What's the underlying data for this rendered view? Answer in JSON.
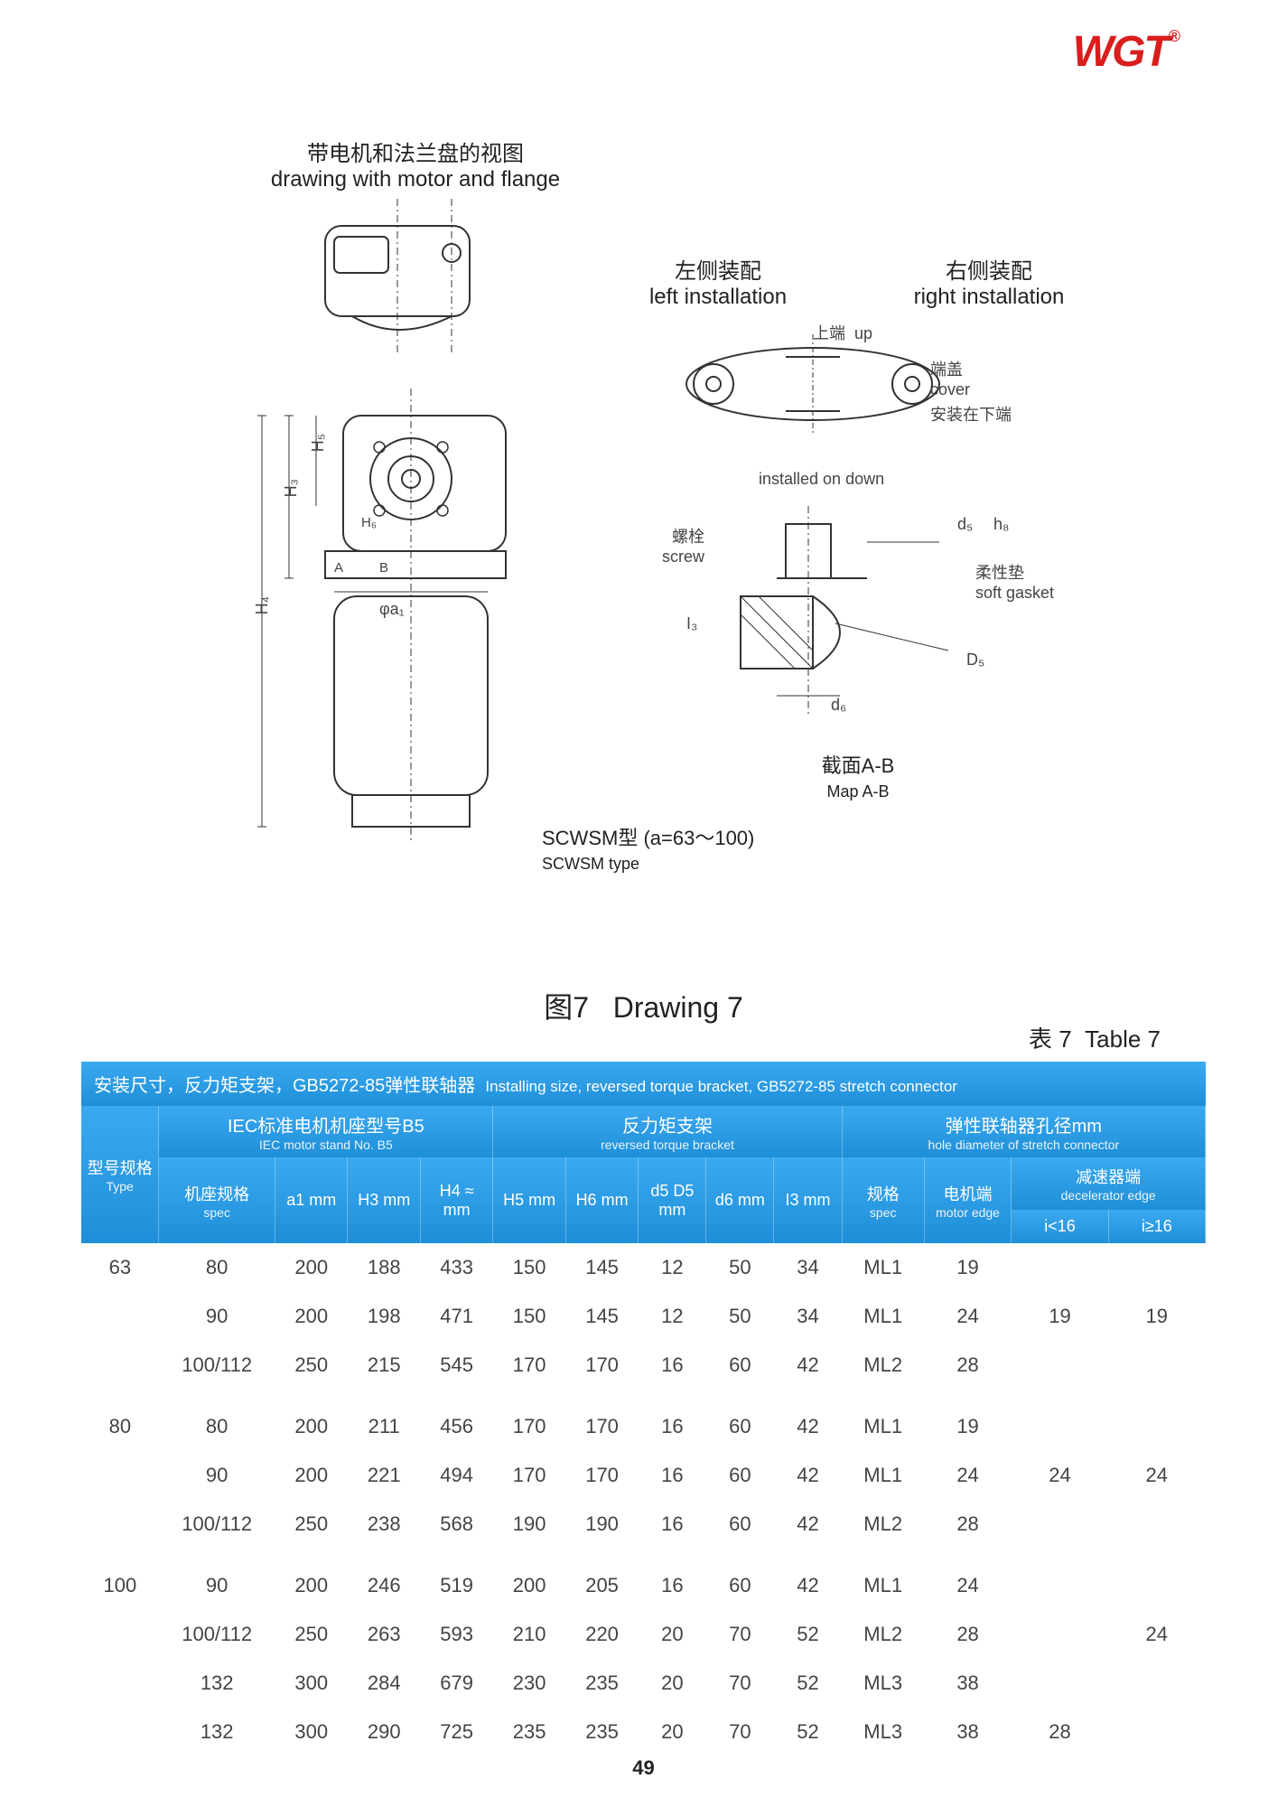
{
  "logo_text": "WGT",
  "diagrams": {
    "top_left": {
      "cn": "带电机和法兰盘的视图",
      "en": "drawing with motor and flange"
    },
    "left_install": {
      "cn": "左侧装配",
      "en": "left installation"
    },
    "right_install": {
      "cn": "右侧装配",
      "en": "right installation"
    },
    "up": {
      "cn": "上端",
      "en": "up"
    },
    "cover": {
      "cn": "端盖",
      "en": "cover"
    },
    "installed_down": {
      "cn": "安装在下端",
      "en": "installed on down"
    },
    "screw": {
      "cn": "螺栓",
      "en": "screw"
    },
    "soft_gasket": {
      "cn": "柔性垫",
      "en": "soft gasket"
    },
    "map_ab": {
      "cn": "截面A-B",
      "en": "Map A-B"
    },
    "scwsm": {
      "cn": "SCWSM型",
      "en": "SCWSM type",
      "param": "(a=63～100)"
    },
    "dim_d5": "d₅",
    "dim_h8": "h₈",
    "dim_D5": "D₅",
    "dim_d6": "d₆",
    "dim_I3": "I₃",
    "dim_H3": "H₃",
    "dim_H4": "H₄",
    "dim_H5": "H₅",
    "dim_H6": "H₆",
    "dim_phi_a1": "φa₁",
    "dim_A": "A",
    "dim_B": "B"
  },
  "drawing_title": {
    "cn": "图7",
    "en": "Drawing 7"
  },
  "table_caption": {
    "cn": "表 7",
    "en": "Table 7"
  },
  "table": {
    "banner": {
      "cn": "安装尺寸，反力矩支架，GB5272-85弹性联轴器",
      "en": "Installing size, reversed torque bracket, GB5272-85 stretch connector"
    },
    "col_type": {
      "cn": "型号规格",
      "en": "Type"
    },
    "group_iec": {
      "cn": "IEC标准电机机座型号B5",
      "en": "IEC motor stand No. B5"
    },
    "group_bracket": {
      "cn": "反力矩支架",
      "en": "reversed torque bracket"
    },
    "group_connector": {
      "cn": "弹性联轴器孔径mm",
      "en": "hole diameter of stretch connector"
    },
    "col_spec": {
      "cn": "机座规格",
      "en": "spec"
    },
    "col_a1": "a1\nmm",
    "col_H3": "H3\nmm",
    "col_H4": "H4\n≈\nmm",
    "col_H5": "H5\nmm",
    "col_H6": "H6\nmm",
    "col_d5D5": "d5\nD5\nmm",
    "col_d6": "d6\nmm",
    "col_I3": "I3\nmm",
    "col_spec2": {
      "cn": "规格",
      "en": "spec"
    },
    "col_motor_edge": {
      "cn": "电机端",
      "en": "motor edge"
    },
    "col_decel": {
      "cn": "减速器端",
      "en": "decelerator edge"
    },
    "col_ilt16": "i<16",
    "col_ige16": "i≥16",
    "rows": [
      {
        "type": "63",
        "spec": "80",
        "a1": 200,
        "H3": 188,
        "H4": 433,
        "H5": 150,
        "H6": 145,
        "d5D5": 12,
        "d6": 50,
        "I3": 34,
        "sp": "ML1",
        "me": 19,
        "dlt": "",
        "dge": ""
      },
      {
        "type": "",
        "spec": "90",
        "a1": 200,
        "H3": 198,
        "H4": 471,
        "H5": 150,
        "H6": 145,
        "d5D5": 12,
        "d6": 50,
        "I3": 34,
        "sp": "ML1",
        "me": 24,
        "dlt": "19",
        "dge": "19"
      },
      {
        "type": "",
        "spec": "100/112",
        "a1": 250,
        "H3": 215,
        "H4": 545,
        "H5": 170,
        "H6": 170,
        "d5D5": 16,
        "d6": 60,
        "I3": 42,
        "sp": "ML2",
        "me": 28,
        "dlt": "",
        "dge": ""
      },
      {
        "type": "80",
        "spec": "80",
        "a1": 200,
        "H3": 211,
        "H4": 456,
        "H5": 170,
        "H6": 170,
        "d5D5": 16,
        "d6": 60,
        "I3": 42,
        "sp": "ML1",
        "me": 19,
        "dlt": "",
        "dge": ""
      },
      {
        "type": "",
        "spec": "90",
        "a1": 200,
        "H3": 221,
        "H4": 494,
        "H5": 170,
        "H6": 170,
        "d5D5": 16,
        "d6": 60,
        "I3": 42,
        "sp": "ML1",
        "me": 24,
        "dlt": "24",
        "dge": "24"
      },
      {
        "type": "",
        "spec": "100/112",
        "a1": 250,
        "H3": 238,
        "H4": 568,
        "H5": 190,
        "H6": 190,
        "d5D5": 16,
        "d6": 60,
        "I3": 42,
        "sp": "ML2",
        "me": 28,
        "dlt": "",
        "dge": ""
      },
      {
        "type": "100",
        "spec": "90",
        "a1": 200,
        "H3": 246,
        "H4": 519,
        "H5": 200,
        "H6": 205,
        "d5D5": 16,
        "d6": 60,
        "I3": 42,
        "sp": "ML1",
        "me": 24,
        "dlt": "",
        "dge": ""
      },
      {
        "type": "",
        "spec": "100/112",
        "a1": 250,
        "H3": 263,
        "H4": 593,
        "H5": 210,
        "H6": 220,
        "d5D5": 20,
        "d6": 70,
        "I3": 52,
        "sp": "ML2",
        "me": 28,
        "dlt": "",
        "dge": "24"
      },
      {
        "type": "",
        "spec": "132",
        "a1": 300,
        "H3": 284,
        "H4": 679,
        "H5": 230,
        "H6": 235,
        "d5D5": 20,
        "d6": 70,
        "I3": 52,
        "sp": "ML3",
        "me": 38,
        "dlt": "",
        "dge": ""
      },
      {
        "type": "",
        "spec": "132",
        "a1": 300,
        "H3": 290,
        "H4": 725,
        "H5": 235,
        "H6": 235,
        "d5D5": 20,
        "d6": 70,
        "I3": 52,
        "sp": "ML3",
        "me": 38,
        "dlt": "28",
        "dge": ""
      }
    ]
  },
  "page_number": "49",
  "styling": {
    "header_gradient_from": "#3ba9f0",
    "header_gradient_to": "#1e8fd8",
    "logo_color": "#d91e1e",
    "body_text_color": "#444444",
    "font_body": 22,
    "font_header": 18
  }
}
